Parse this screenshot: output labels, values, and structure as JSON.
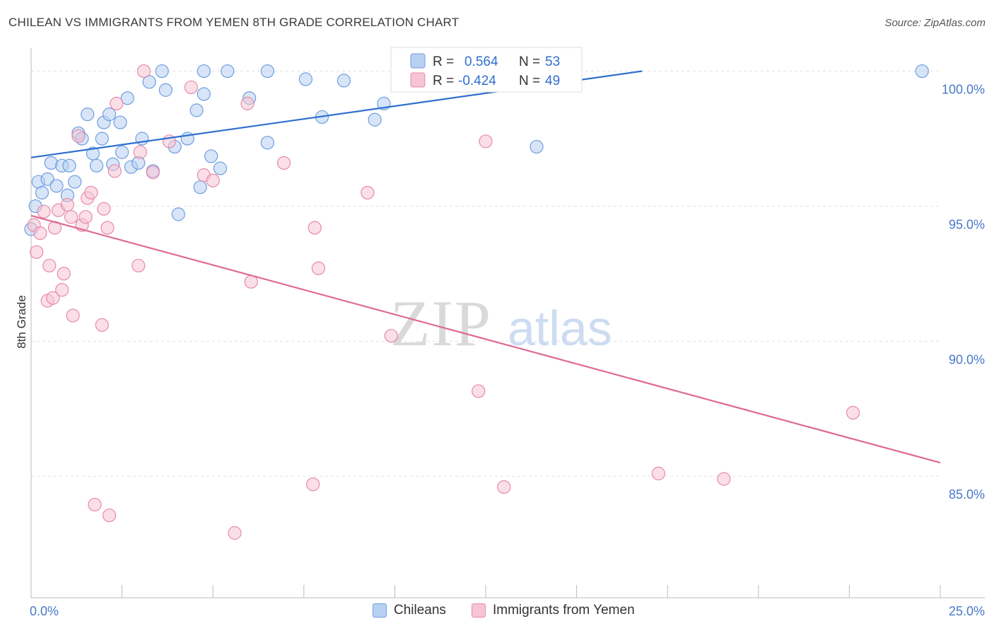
{
  "header": {
    "title": "CHILEAN VS IMMIGRANTS FROM YEMEN 8TH GRADE CORRELATION CHART",
    "source": "Source: ZipAtlas.com"
  },
  "watermark": {
    "zip": "ZIP",
    "atlas": "atlas"
  },
  "legend_top": {
    "rows": [
      {
        "r_label": "R =",
        "r_value": "0.564",
        "n_label": "N =",
        "n_value": "53"
      },
      {
        "r_label": "R =",
        "r_value": "-0.424",
        "n_label": "N =",
        "n_value": "49"
      }
    ]
  },
  "legend_bottom": {
    "items": [
      "Chileans",
      "Immigrants from Yemen"
    ]
  },
  "colors": {
    "blue_fill": "#b8d0f2",
    "blue_stroke": "#6e9ee0",
    "blue_line": "#2f6fce",
    "pink_fill": "#f7c4d4",
    "pink_stroke": "#e68aa8",
    "pink_line": "#de6a95",
    "tick_text": "#4a78c8",
    "grid": "#e3e3e3"
  },
  "chart_data": {
    "type": "scatter",
    "title": "CHILEAN VS IMMIGRANTS FROM YEMEN 8TH GRADE CORRELATION CHART",
    "ylabel": "8th Grade",
    "xlabel": "",
    "xlim": [
      0,
      25
    ],
    "ylim": [
      80.5,
      100.8
    ],
    "x_tick_labels": [
      {
        "value": 0,
        "label": "0.0%"
      },
      {
        "value": 25,
        "label": "25.0%"
      }
    ],
    "x_minor_ticks": [
      2.5,
      5,
      7.5,
      10,
      12.5,
      15,
      17.5,
      20,
      22.5
    ],
    "y_ticks": [
      {
        "value": 100,
        "label": "100.0%"
      },
      {
        "value": 95,
        "label": "95.0%"
      },
      {
        "value": 90,
        "label": "90.0%"
      },
      {
        "value": 85,
        "label": "85.0%"
      }
    ],
    "grid": true,
    "legend_placement": "top-center",
    "series": [
      {
        "name": "Chileans",
        "r": 0.564,
        "n": 53,
        "trend": {
          "x": [
            0,
            16.8
          ],
          "y": [
            96.8,
            100.0
          ]
        },
        "points": [
          [
            0.12,
            95.0
          ],
          [
            0.2,
            95.9
          ],
          [
            0.3,
            95.5
          ],
          [
            0.45,
            96.0
          ],
          [
            0.55,
            96.6
          ],
          [
            0.7,
            95.75
          ],
          [
            0.85,
            96.5
          ],
          [
            1.0,
            95.4
          ],
          [
            1.05,
            96.5
          ],
          [
            1.2,
            95.9
          ],
          [
            1.3,
            97.7
          ],
          [
            1.4,
            97.5
          ],
          [
            1.55,
            98.4
          ],
          [
            1.7,
            96.95
          ],
          [
            1.8,
            96.5
          ],
          [
            1.95,
            97.5
          ],
          [
            2.0,
            98.1
          ],
          [
            2.15,
            98.4
          ],
          [
            2.25,
            96.55
          ],
          [
            2.45,
            98.1
          ],
          [
            2.5,
            97.0
          ],
          [
            2.75,
            96.45
          ],
          [
            2.65,
            99.0
          ],
          [
            2.95,
            96.6
          ],
          [
            3.05,
            97.5
          ],
          [
            3.25,
            99.6
          ],
          [
            3.35,
            96.3
          ],
          [
            3.6,
            100.0
          ],
          [
            3.7,
            99.3
          ],
          [
            3.95,
            97.2
          ],
          [
            4.05,
            94.7
          ],
          [
            4.3,
            97.5
          ],
          [
            4.55,
            98.55
          ],
          [
            4.65,
            95.7
          ],
          [
            4.75,
            99.15
          ],
          [
            4.75,
            100.0
          ],
          [
            4.95,
            96.85
          ],
          [
            5.2,
            96.4
          ],
          [
            5.4,
            100.0
          ],
          [
            6.0,
            99.0
          ],
          [
            6.5,
            97.35
          ],
          [
            6.5,
            100.0
          ],
          [
            7.55,
            99.7
          ],
          [
            8.0,
            98.3
          ],
          [
            8.6,
            99.65
          ],
          [
            9.45,
            98.2
          ],
          [
            9.7,
            98.8
          ],
          [
            12.0,
            100.0
          ],
          [
            12.8,
            100.0
          ],
          [
            13.6,
            100.0
          ],
          [
            13.9,
            97.2
          ],
          [
            24.5,
            100.0
          ],
          [
            0.0,
            94.15
          ]
        ]
      },
      {
        "name": "Immigrants from Yemen",
        "r": -0.424,
        "n": 49,
        "trend": {
          "x": [
            0,
            25.0
          ],
          "y": [
            94.65,
            85.5
          ]
        },
        "points": [
          [
            0.08,
            94.3
          ],
          [
            0.15,
            93.3
          ],
          [
            0.25,
            94.0
          ],
          [
            0.35,
            94.8
          ],
          [
            0.45,
            91.5
          ],
          [
            0.5,
            92.8
          ],
          [
            0.6,
            91.6
          ],
          [
            0.65,
            94.2
          ],
          [
            0.75,
            94.85
          ],
          [
            0.85,
            91.9
          ],
          [
            0.9,
            92.5
          ],
          [
            1.0,
            95.05
          ],
          [
            1.1,
            94.6
          ],
          [
            1.15,
            90.95
          ],
          [
            1.3,
            97.6
          ],
          [
            1.4,
            94.3
          ],
          [
            1.5,
            94.6
          ],
          [
            1.55,
            95.3
          ],
          [
            1.65,
            95.5
          ],
          [
            1.75,
            83.95
          ],
          [
            1.95,
            90.6
          ],
          [
            2.0,
            94.9
          ],
          [
            2.1,
            94.2
          ],
          [
            2.15,
            83.55
          ],
          [
            2.3,
            96.3
          ],
          [
            2.35,
            98.8
          ],
          [
            2.95,
            92.8
          ],
          [
            3.0,
            97.0
          ],
          [
            3.1,
            100.0
          ],
          [
            3.35,
            96.25
          ],
          [
            3.8,
            97.4
          ],
          [
            4.4,
            99.4
          ],
          [
            4.75,
            96.15
          ],
          [
            5.0,
            95.95
          ],
          [
            5.6,
            82.9
          ],
          [
            5.95,
            98.8
          ],
          [
            6.05,
            92.2
          ],
          [
            6.95,
            96.6
          ],
          [
            7.75,
            84.7
          ],
          [
            7.8,
            94.2
          ],
          [
            7.9,
            92.7
          ],
          [
            9.25,
            95.5
          ],
          [
            9.9,
            90.2
          ],
          [
            12.3,
            88.15
          ],
          [
            12.5,
            97.4
          ],
          [
            13.0,
            84.6
          ],
          [
            17.25,
            85.1
          ],
          [
            19.05,
            84.9
          ],
          [
            22.6,
            87.35
          ]
        ]
      }
    ]
  }
}
